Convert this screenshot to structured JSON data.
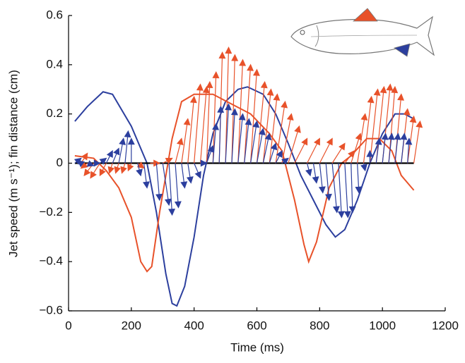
{
  "chart_data": {
    "type": "line",
    "x_label": "Time (ms)",
    "y_label": "Jet speed (m s⁻¹); fin distance (cm)",
    "xlim": [
      0,
      1200
    ],
    "xticks": [
      0,
      200,
      400,
      600,
      800,
      1000,
      1200
    ],
    "ylim": [
      -0.6,
      0.6
    ],
    "yticks": [
      {
        "value": -0.6,
        "label": "−0.6"
      },
      {
        "value": -0.4,
        "label": "−0.4"
      },
      {
        "value": -0.2,
        "label": "−0.2"
      },
      0,
      0.2,
      0.4,
      0.6
    ],
    "series": [
      {
        "color": "#2c3f9e",
        "x": [
          20,
          60,
          110,
          140,
          200,
          250,
          280,
          310,
          330,
          345,
          370,
          400,
          430,
          460,
          500,
          540,
          570,
          620,
          660,
          700,
          740,
          780,
          820,
          850,
          880,
          920,
          960,
          1000,
          1040,
          1070,
          1100
        ],
        "values": [
          0.17,
          0.23,
          0.29,
          0.28,
          0.15,
          0.0,
          -0.2,
          -0.45,
          -0.57,
          -0.58,
          -0.5,
          -0.3,
          -0.05,
          0.12,
          0.25,
          0.3,
          0.31,
          0.28,
          0.2,
          0.08,
          -0.05,
          -0.15,
          -0.25,
          -0.3,
          -0.27,
          -0.15,
          0.0,
          0.12,
          0.2,
          0.2,
          0.18
        ]
      },
      {
        "color": "#e8522a",
        "x": [
          20,
          80,
          120,
          160,
          200,
          230,
          250,
          265,
          290,
          330,
          360,
          400,
          460,
          520,
          580,
          640,
          680,
          720,
          750,
          765,
          790,
          830,
          870,
          900,
          950,
          990,
          1030,
          1060,
          1100
        ],
        "values": [
          0.03,
          0.02,
          -0.03,
          -0.1,
          -0.22,
          -0.4,
          -0.44,
          -0.42,
          -0.2,
          0.1,
          0.25,
          0.28,
          0.28,
          0.24,
          0.2,
          0.12,
          0.05,
          -0.15,
          -0.33,
          -0.4,
          -0.32,
          -0.1,
          0.0,
          0.03,
          0.1,
          0.1,
          0.05,
          -0.05,
          -0.11
        ]
      }
    ],
    "arrows": [
      {
        "color": "#e8522a",
        "x": [
          40,
          60,
          80,
          100,
          120,
          140,
          160,
          180,
          200,
          220,
          260,
          300,
          340,
          360,
          380,
          400,
          420,
          440,
          460,
          480,
          500,
          520,
          540,
          560,
          580,
          600,
          620,
          640,
          660,
          680,
          700,
          720,
          760,
          800,
          840,
          880,
          900,
          920,
          940,
          960,
          980,
          1000,
          1020,
          1040,
          1060,
          1080,
          1100
        ],
        "x_end": [
          60,
          40,
          50,
          70,
          100,
          130,
          150,
          170,
          190,
          240,
          290,
          330,
          360,
          380,
          400,
          420,
          440,
          450,
          470,
          490,
          510,
          530,
          555,
          580,
          600,
          625,
          645,
          665,
          690,
          710,
          735,
          760,
          800,
          840,
          880,
          910,
          930,
          945,
          965,
          985,
          1005,
          1025,
          1040,
          1060,
          1080,
          1100,
          1120
        ],
        "y_end": [
          0.04,
          -0.02,
          -0.05,
          -0.06,
          -0.05,
          -0.04,
          -0.04,
          -0.04,
          -0.03,
          -0.02,
          0.0,
          0.02,
          0.1,
          0.18,
          0.27,
          0.32,
          0.31,
          0.33,
          0.37,
          0.45,
          0.47,
          0.44,
          0.42,
          0.4,
          0.38,
          0.33,
          0.3,
          0.28,
          0.25,
          0.2,
          0.15,
          0.1,
          0.1,
          0.1,
          0.08,
          0.05,
          0.12,
          0.2,
          0.27,
          0.3,
          0.31,
          0.32,
          0.31,
          0.28,
          0.22,
          0.19,
          0.17
        ]
      },
      {
        "color": "#2c3f9e",
        "x": [
          20,
          40,
          60,
          80,
          100,
          120,
          140,
          160,
          180,
          200,
          220,
          240,
          280,
          300,
          320,
          340,
          360,
          380,
          400,
          420,
          440,
          460,
          480,
          500,
          520,
          540,
          560,
          580,
          600,
          620,
          640,
          660,
          680,
          720,
          760,
          780,
          800,
          820,
          840,
          860,
          880,
          900,
          920,
          940,
          960,
          980,
          1000,
          1020,
          1040,
          1060,
          1080
        ],
        "x_end": [
          40,
          30,
          80,
          100,
          120,
          140,
          160,
          175,
          190,
          200,
          230,
          250,
          290,
          320,
          330,
          350,
          370,
          390,
          420,
          440,
          460,
          470,
          485,
          510,
          530,
          555,
          575,
          600,
          620,
          640,
          660,
          680,
          700,
          720,
          770,
          790,
          810,
          830,
          855,
          870,
          890,
          905,
          925,
          945,
          960,
          990,
          1010,
          1030,
          1050,
          1070,
          1085
        ],
        "y_end": [
          0.02,
          0.01,
          -0.01,
          0.0,
          0.02,
          0.05,
          0.06,
          0.1,
          0.13,
          0.1,
          -0.05,
          -0.1,
          -0.15,
          -0.17,
          -0.21,
          -0.18,
          -0.1,
          -0.08,
          -0.06,
          0.0,
          0.07,
          0.16,
          0.23,
          0.24,
          0.22,
          0.2,
          0.18,
          0.17,
          0.14,
          0.12,
          0.08,
          0.05,
          0.02,
          0.0,
          -0.05,
          -0.08,
          -0.12,
          -0.15,
          -0.2,
          -0.22,
          -0.22,
          -0.2,
          -0.12,
          -0.03,
          0.05,
          0.1,
          0.12,
          0.12,
          0.12,
          0.12,
          0.1
        ]
      }
    ]
  }
}
